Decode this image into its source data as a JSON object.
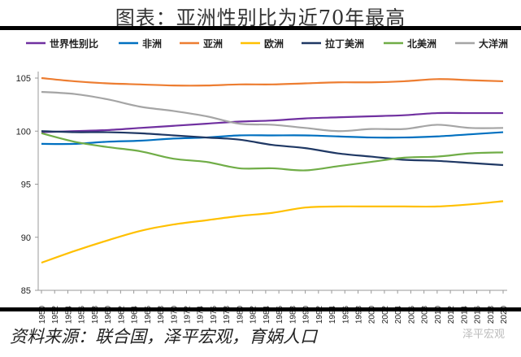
{
  "title": "图表：亚洲性别比为近70年最高",
  "source": "资料来源：联合国，泽平宏观，育娲人口",
  "watermark": "泽平宏观",
  "chart_data": {
    "type": "line",
    "title": "",
    "xlabel": "",
    "ylabel": "",
    "ylim": [
      85,
      105
    ],
    "yticks": [
      85,
      90,
      95,
      100,
      105
    ],
    "xlim": [
      1950,
      2020
    ],
    "xticks": [
      1950,
      1952,
      1954,
      1956,
      1958,
      1960,
      1962,
      1964,
      1966,
      1968,
      1970,
      1972,
      1974,
      1976,
      1978,
      1980,
      1982,
      1984,
      1986,
      1988,
      1990,
      1992,
      1994,
      1996,
      1998,
      2000,
      2002,
      2004,
      2006,
      2008,
      2010,
      2012,
      2014,
      2016,
      2018,
      2020
    ],
    "grid": false,
    "legend": "top",
    "x": [
      1950,
      1955,
      1960,
      1965,
      1970,
      1975,
      1980,
      1985,
      1990,
      1995,
      2000,
      2005,
      2010,
      2015,
      2020
    ],
    "series": [
      {
        "name": "世界性别比",
        "color": "#7030a0",
        "values": [
          99.9,
          100.0,
          100.1,
          100.3,
          100.5,
          100.7,
          100.9,
          101.0,
          101.2,
          101.3,
          101.4,
          101.5,
          101.7,
          101.7,
          101.7
        ]
      },
      {
        "name": "非洲",
        "color": "#0070c0",
        "values": [
          98.8,
          98.8,
          99.0,
          99.1,
          99.3,
          99.4,
          99.6,
          99.6,
          99.6,
          99.5,
          99.4,
          99.4,
          99.5,
          99.7,
          99.9
        ]
      },
      {
        "name": "亚洲",
        "color": "#ed7d31",
        "values": [
          105.0,
          104.7,
          104.5,
          104.4,
          104.3,
          104.3,
          104.4,
          104.4,
          104.5,
          104.6,
          104.6,
          104.7,
          104.9,
          104.8,
          104.7
        ]
      },
      {
        "name": "欧洲",
        "color": "#ffc000",
        "values": [
          87.6,
          88.7,
          89.7,
          90.6,
          91.2,
          91.6,
          92.0,
          92.3,
          92.8,
          92.9,
          92.9,
          92.9,
          92.9,
          93.1,
          93.4
        ]
      },
      {
        "name": "拉丁美洲",
        "color": "#1f3864",
        "values": [
          100.0,
          99.9,
          99.9,
          99.8,
          99.6,
          99.4,
          99.2,
          98.7,
          98.4,
          97.9,
          97.6,
          97.3,
          97.2,
          97.0,
          96.8
        ]
      },
      {
        "name": "北美洲",
        "color": "#70ad47",
        "values": [
          99.8,
          99.0,
          98.5,
          98.1,
          97.4,
          97.1,
          96.5,
          96.5,
          96.3,
          96.7,
          97.1,
          97.5,
          97.6,
          97.9,
          98.0
        ]
      },
      {
        "name": "大洋洲",
        "color": "#a5a5a5",
        "values": [
          103.7,
          103.5,
          103.0,
          102.3,
          101.9,
          101.4,
          100.7,
          100.6,
          100.3,
          100.0,
          100.2,
          100.2,
          100.6,
          100.3,
          100.3
        ]
      }
    ]
  }
}
